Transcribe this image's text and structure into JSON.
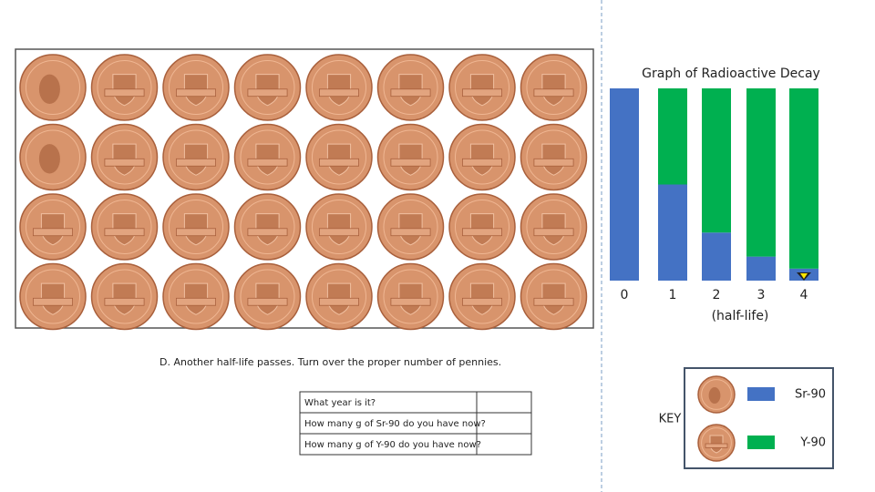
{
  "chart_data": {
    "type": "stacked_bar",
    "title": "Graph of Radioactive Decay",
    "x_label": "(half-life)",
    "categories": [
      "0",
      "1",
      "2",
      "3",
      "4"
    ],
    "series": [
      {
        "name": "Sr-90",
        "color": "#4472c4",
        "values": [
          100,
          50,
          25,
          12.5,
          6.25
        ]
      },
      {
        "name": "Y-90",
        "color": "#00b050",
        "values": [
          0,
          50,
          75,
          87.5,
          93.75
        ]
      }
    ],
    "ylim": [
      0,
      100
    ]
  },
  "instruction": "D.  Another half-life passes.  Turn over the proper number of pennies.",
  "table": {
    "rows": [
      [
        "What year is it?",
        ""
      ],
      [
        "How many g of Sr-90 do you have now?",
        ""
      ],
      [
        "How many g of Y-90 do you have now?",
        ""
      ]
    ]
  },
  "key": {
    "title": "KEY"
  }
}
